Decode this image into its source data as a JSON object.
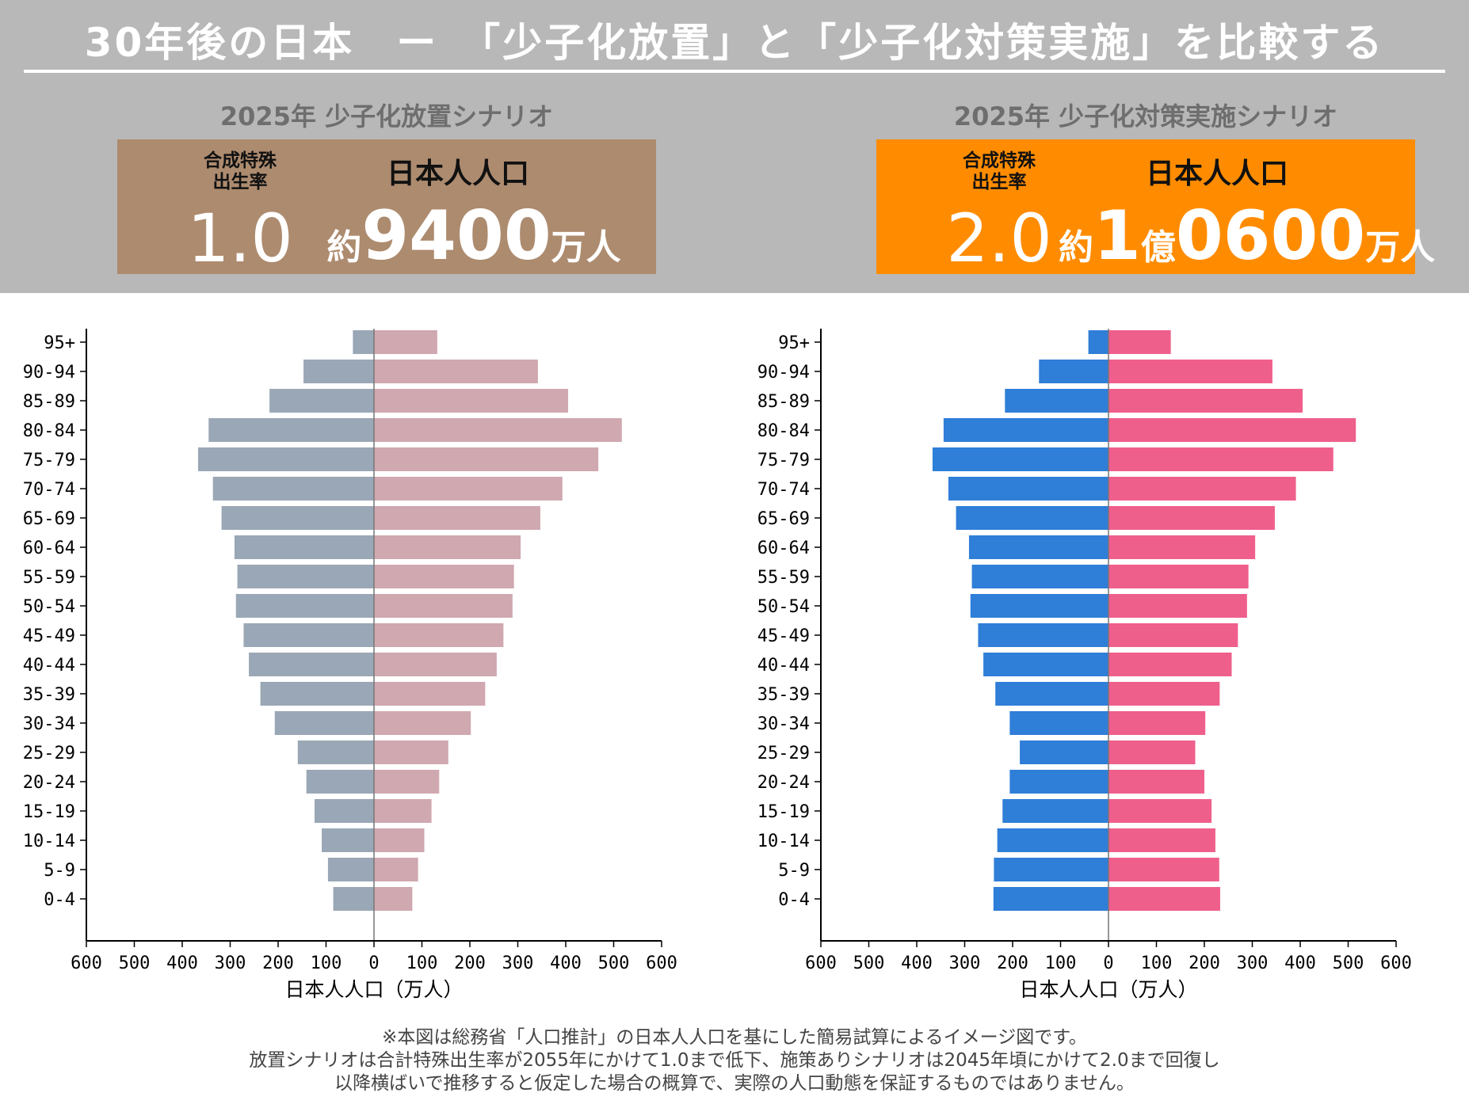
{
  "title": "30年後の日本　ー　「少子化放置」と「少子化対策実施」を比較する",
  "colors": {
    "header_bg": "#b8b8b8",
    "baseline_box": "#ad8b6f",
    "policy_box": "#ff8c00",
    "baseline_male": "#9aa7b6",
    "baseline_female": "#d0a8b0",
    "policy_male": "#2f7ed8",
    "policy_female": "#ef5f8c"
  },
  "scenarios": [
    {
      "heading": "2025年 少子化放置シナリオ",
      "tfr_label_1": "合成特殊",
      "tfr_label_2": "出生率",
      "population_label": "日本人人口",
      "tfr_value": "1.0",
      "population_parts": [
        {
          "text": "約",
          "size": "sm"
        },
        {
          "text": "9400",
          "size": "lg"
        },
        {
          "text": "万人",
          "size": "sm"
        }
      ]
    },
    {
      "heading": "2025年 少子化対策実施シナリオ",
      "tfr_label_1": "合成特殊",
      "tfr_label_2": "出生率",
      "population_label": "日本人人口",
      "tfr_value": "2.0",
      "population_parts": [
        {
          "text": "約",
          "size": "sm"
        },
        {
          "text": "1",
          "size": "lg"
        },
        {
          "text": "億",
          "size": "sm"
        },
        {
          "text": "0600",
          "size": "lg"
        },
        {
          "text": "万人",
          "size": "sm"
        }
      ]
    }
  ],
  "chart_data": [
    {
      "type": "bar",
      "orientation": "horizontal-pyramid",
      "categories": [
        "0-4",
        "5-9",
        "10-14",
        "15-19",
        "20-24",
        "25-29",
        "30-34",
        "35-39",
        "40-44",
        "45-49",
        "50-54",
        "55-59",
        "60-64",
        "65-69",
        "70-74",
        "75-79",
        "80-84",
        "85-89",
        "90-94",
        "95+"
      ],
      "series": [
        {
          "values": [
            85,
            96,
            109,
            124,
            141,
            159,
            207,
            237,
            261,
            272,
            288,
            285,
            291,
            318,
            336,
            367,
            345,
            218,
            147,
            44
          ],
          "side": "left",
          "color": "#9aa7b6"
        },
        {
          "values": [
            80,
            92,
            105,
            120,
            136,
            155,
            202,
            232,
            256,
            270,
            289,
            292,
            306,
            347,
            393,
            468,
            517,
            405,
            342,
            132
          ],
          "side": "right",
          "color": "#d0a8b0"
        }
      ],
      "xlabel": "日本人人口（万人）",
      "xlim": [
        -600,
        600
      ],
      "xticks": [
        -600,
        -500,
        -400,
        -300,
        -200,
        -100,
        0,
        100,
        200,
        300,
        400,
        500,
        600
      ],
      "xtick_labels": [
        "600",
        "500",
        "400",
        "300",
        "200",
        "100",
        "0",
        "100",
        "200",
        "300",
        "400",
        "500",
        "600"
      ]
    },
    {
      "type": "bar",
      "orientation": "horizontal-pyramid",
      "categories": [
        "0-4",
        "5-9",
        "10-14",
        "15-19",
        "20-24",
        "25-29",
        "30-34",
        "35-39",
        "40-44",
        "45-49",
        "50-54",
        "55-59",
        "60-64",
        "65-69",
        "70-74",
        "75-79",
        "80-84",
        "85-89",
        "90-94",
        "95+"
      ],
      "series": [
        {
          "values": [
            240,
            239,
            232,
            221,
            206,
            185,
            206,
            236,
            261,
            272,
            288,
            285,
            291,
            318,
            334,
            367,
            344,
            216,
            145,
            42
          ],
          "side": "left",
          "color": "#2f7ed8"
        },
        {
          "values": [
            233,
            231,
            223,
            215,
            200,
            181,
            202,
            232,
            257,
            270,
            289,
            292,
            306,
            347,
            391,
            469,
            516,
            405,
            342,
            130
          ],
          "side": "right",
          "color": "#ef5f8c"
        }
      ],
      "xlabel": "日本人人口（万人）",
      "xlim": [
        -600,
        600
      ],
      "xticks": [
        -600,
        -500,
        -400,
        -300,
        -200,
        -100,
        0,
        100,
        200,
        300,
        400,
        500,
        600
      ],
      "xtick_labels": [
        "600",
        "500",
        "400",
        "300",
        "200",
        "100",
        "0",
        "100",
        "200",
        "300",
        "400",
        "500",
        "600"
      ]
    }
  ],
  "footnote": [
    "※本図は総務省「人口推計」の日本人人口を基にした簡易試算によるイメージ図です。",
    "放置シナリオは合計特殊出生率が2055年にかけて1.0まで低下、施策ありシナリオは2045年頃にかけて2.0まで回復し",
    "以降横ばいで推移すると仮定した場合の概算で、実際の人口動態を保証するものではありません。"
  ]
}
